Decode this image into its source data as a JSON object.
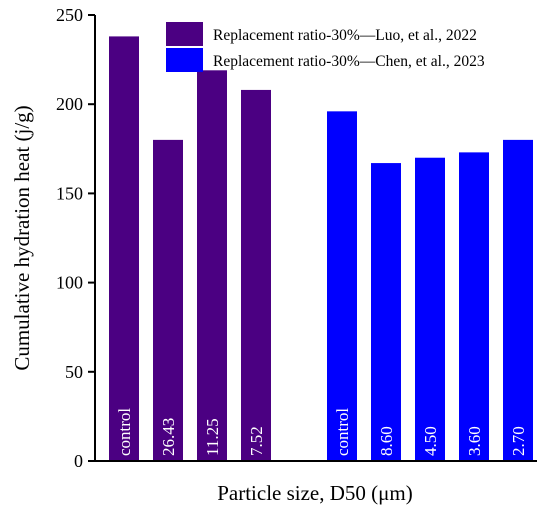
{
  "chart_data": {
    "type": "bar",
    "title": "",
    "xlabel": "Particle size, D50 (μm)",
    "ylabel": "Cumulative hydration heat (j/g)",
    "ylim": [
      0,
      250
    ],
    "yticks": [
      0,
      50,
      100,
      150,
      200,
      250
    ],
    "grid": false,
    "legend_position": "top-right",
    "series": [
      {
        "name": "Replacement ratio-30%—Luo, et al., 2022",
        "color": "#4b0082",
        "categories": [
          "control",
          "26.43",
          "11.25",
          "7.52"
        ],
        "values": [
          238,
          180,
          219,
          208
        ]
      },
      {
        "name": "Replacement ratio-30%—Chen, et al., 2023",
        "color": "#0000ff",
        "categories": [
          "control",
          "8.60",
          "4.50",
          "3.60",
          "2.70"
        ],
        "values": [
          196,
          167,
          170,
          173,
          180
        ]
      }
    ]
  }
}
